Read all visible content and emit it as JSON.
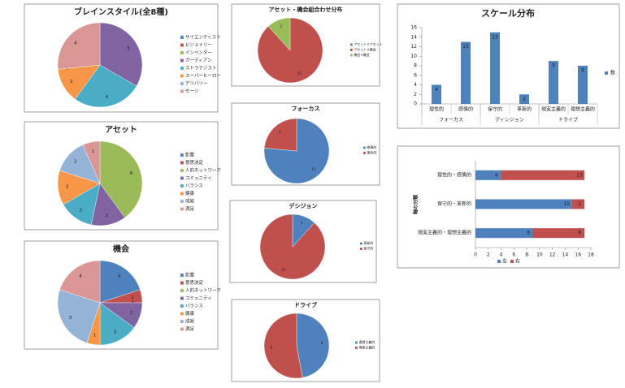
{
  "chart_data": [
    {
      "type": "pie",
      "title": "ブレインスタイル(全8種)",
      "categories": [
        "サイエンティスト",
        "ビジョナリー",
        "インベンター",
        "ガーディアン",
        "ストラテジスト",
        "スーパーヒーロー",
        "デリバリー",
        "セージ"
      ],
      "values": [
        0,
        0,
        0,
        5,
        4,
        2,
        0,
        4
      ],
      "colors": [
        "#4f81bd",
        "#c0504d",
        "#9bbb59",
        "#8064a2",
        "#4bacc6",
        "#f79646",
        "#95b3d7",
        "#d99694"
      ]
    },
    {
      "type": "pie",
      "title": "アセット",
      "categories": [
        "影響",
        "意思決定",
        "人的ネットワーク",
        "コミュニティ",
        "バランス",
        "健康",
        "成就",
        "満足"
      ],
      "values": [
        0,
        0,
        6,
        2,
        2,
        2,
        2,
        1
      ],
      "colors": [
        "#4f81bd",
        "#c0504d",
        "#9bbb59",
        "#8064a2",
        "#4bacc6",
        "#f79646",
        "#95b3d7",
        "#d99694"
      ]
    },
    {
      "type": "pie",
      "title": "機会",
      "categories": [
        "影響",
        "意思決定",
        "人的ネットワーク",
        "コミュニティ",
        "バランス",
        "健康",
        "成就",
        "満足"
      ],
      "values": [
        4,
        1,
        0,
        2,
        3,
        1,
        5,
        4
      ],
      "colors": [
        "#4f81bd",
        "#c0504d",
        "#9bbb59",
        "#8064a2",
        "#4bacc6",
        "#f79646",
        "#95b3d7",
        "#d99694"
      ]
    },
    {
      "type": "pie",
      "title": "アセット・機会組合わせ分布",
      "categories": [
        "アセット×アセット",
        "アセット×機会",
        "機会×機会"
      ],
      "values": [
        0,
        15,
        2
      ],
      "colors": [
        "#4f81bd",
        "#c0504d",
        "#9bbb59"
      ]
    },
    {
      "type": "pie",
      "title": "フォーカス",
      "categories": [
        "感情的",
        "理性的"
      ],
      "values": [
        13,
        4
      ],
      "colors": [
        "#4f81bd",
        "#c0504d"
      ]
    },
    {
      "type": "pie",
      "title": "デシジョン",
      "categories": [
        "革新的",
        "保守的"
      ],
      "values": [
        2,
        15
      ],
      "colors": [
        "#4f81bd",
        "#c0504d"
      ]
    },
    {
      "type": "pie",
      "title": "ドライブ",
      "categories": [
        "理想主義的",
        "現実主義的"
      ],
      "values": [
        8,
        9
      ],
      "colors": [
        "#4f81bd",
        "#c0504d"
      ]
    },
    {
      "type": "bar",
      "title": "スケール分布",
      "categories": [
        "理性的",
        "感情的",
        "保守的",
        "革新的",
        "現実主義的",
        "理想主義的"
      ],
      "group_labels": [
        "フォーカス",
        "ディシジョン",
        "ドライブ"
      ],
      "series": [
        {
          "name": "数",
          "color": "#4f81bd",
          "values": [
            4,
            13,
            15,
            2,
            9,
            8
          ]
        }
      ],
      "ylim": [
        0,
        16
      ],
      "yticks": [
        0,
        2,
        4,
        6,
        8,
        10,
        12,
        14,
        16
      ]
    },
    {
      "type": "hbar_stacked",
      "y_label": "軸の分類",
      "categories": [
        "理性的・感情的",
        "保守的・革新的",
        "現実主義的・理想主義的"
      ],
      "series": [
        {
          "name": "左",
          "color": "#4f81bd",
          "values": [
            4,
            15,
            9
          ]
        },
        {
          "name": "右",
          "color": "#c0504d",
          "values": [
            13,
            2,
            8
          ]
        }
      ],
      "xlim": [
        0,
        18
      ],
      "xticks": [
        0,
        2,
        4,
        6,
        8,
        10,
        12,
        14,
        16,
        18
      ]
    }
  ]
}
